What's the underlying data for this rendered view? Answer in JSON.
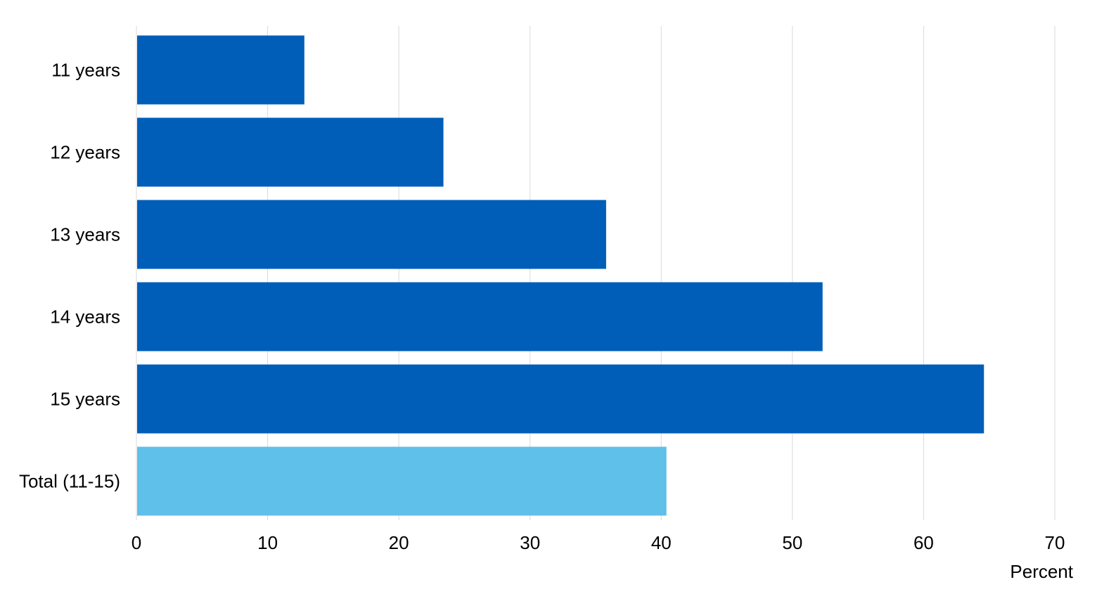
{
  "chart_data": {
    "type": "bar",
    "orientation": "horizontal",
    "categories": [
      "11 years",
      "12 years",
      "13 years",
      "14 years",
      "15 years",
      "Total (11-15)"
    ],
    "values": [
      12.8,
      23.4,
      35.8,
      52.3,
      64.6,
      40.4
    ],
    "xlabel": "Percent",
    "xlim": [
      0,
      70
    ],
    "xticks": [
      0,
      10,
      20,
      30,
      40,
      50,
      60,
      70
    ],
    "grid": true,
    "colors": {
      "bar": "#005EB8",
      "total_bar": "#5FC0E9",
      "grid": "#D9D9D9"
    }
  }
}
